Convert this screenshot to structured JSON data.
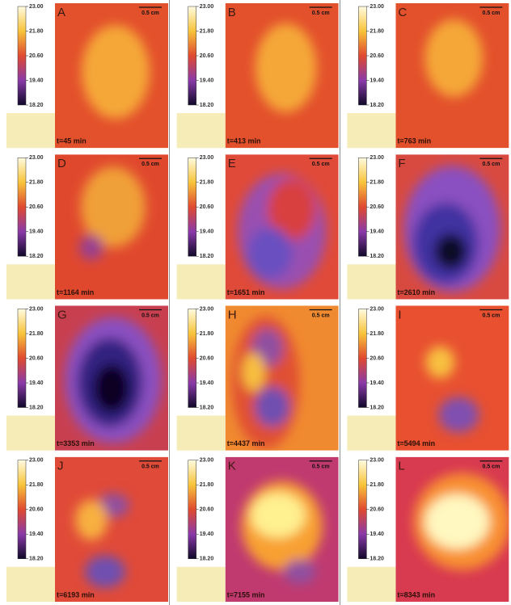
{
  "colorbar": {
    "labels": [
      "23.00",
      "21.80",
      "20.60",
      "19.40",
      "18.20"
    ]
  },
  "scale": "0.5 cm",
  "panels": [
    {
      "letter": "A",
      "time": "t=45 min"
    },
    {
      "letter": "B",
      "time": "t=413 min"
    },
    {
      "letter": "C",
      "time": "t=763 min"
    },
    {
      "letter": "D",
      "time": "t=1164 min"
    },
    {
      "letter": "E",
      "time": "t=1651 min"
    },
    {
      "letter": "F",
      "time": "t=2610 min"
    },
    {
      "letter": "G",
      "time": "t=3353 min"
    },
    {
      "letter": "H",
      "time": "t=4437 min"
    },
    {
      "letter": "I",
      "time": "t=5494 min"
    },
    {
      "letter": "J",
      "time": "t=6193 min"
    },
    {
      "letter": "K",
      "time": "t=7155 min"
    },
    {
      "letter": "L",
      "time": "t=8343 min"
    }
  ]
}
